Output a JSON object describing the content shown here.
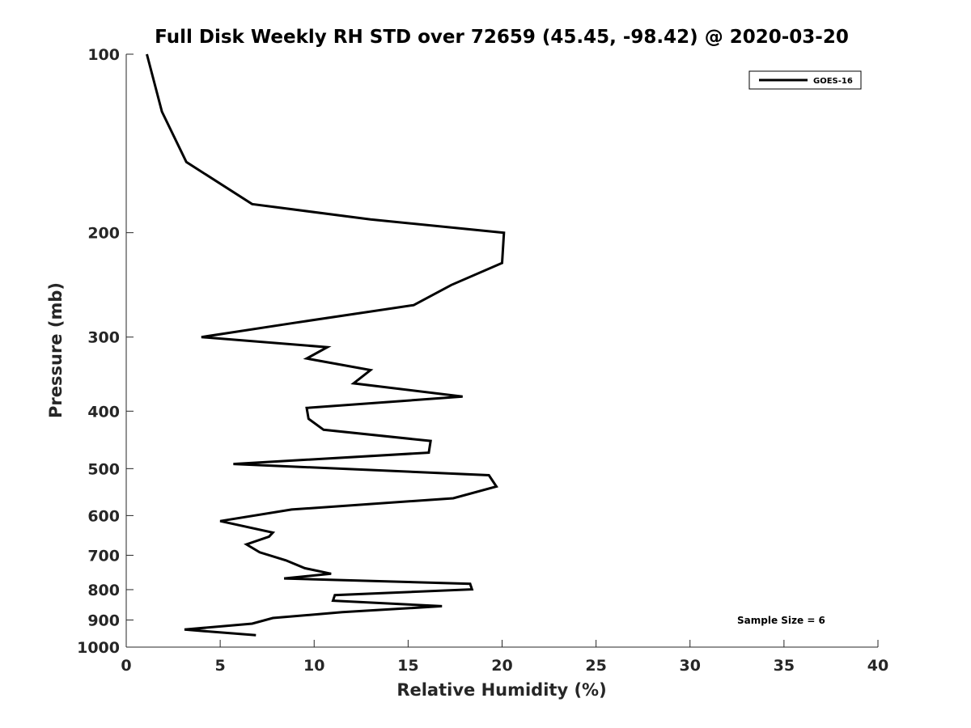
{
  "chart_data": {
    "type": "line",
    "title": "Full Disk Weekly RH STD over 72659 (45.45, -98.42) @ 2020-03-20",
    "xlabel": "Relative Humidity (%)",
    "ylabel": "Pressure (mb)",
    "xlim": [
      0,
      40
    ],
    "ylim": [
      100,
      1000
    ],
    "yscale": "log",
    "yreversed": true,
    "x_ticks": [
      0,
      5,
      10,
      15,
      20,
      25,
      30,
      35,
      40
    ],
    "x_tick_labels": [
      "0",
      "5",
      "10",
      "15",
      "20",
      "25",
      "30",
      "35",
      "40"
    ],
    "y_ticks": [
      100,
      200,
      300,
      400,
      500,
      600,
      700,
      800,
      900,
      1000
    ],
    "y_tick_labels": [
      "100",
      "200",
      "300",
      "400",
      "500",
      "600",
      "700",
      "800",
      "900",
      "1000"
    ],
    "grid": false,
    "legend": {
      "position": "top-right",
      "entries": [
        "GOES-16"
      ]
    },
    "annotation": {
      "text": "Sample Size = 6",
      "position": "bottom-right"
    },
    "series": [
      {
        "name": "GOES-16",
        "color": "#000000",
        "points": [
          [
            1.1,
            100
          ],
          [
            1.9,
            125
          ],
          [
            3.2,
            152
          ],
          [
            6.7,
            179
          ],
          [
            13.0,
            190
          ],
          [
            20.1,
            200
          ],
          [
            20.0,
            225
          ],
          [
            17.3,
            245
          ],
          [
            15.3,
            265
          ],
          [
            8.9,
            284
          ],
          [
            4.0,
            300
          ],
          [
            10.7,
            312
          ],
          [
            9.6,
            326
          ],
          [
            13.0,
            341
          ],
          [
            12.1,
            359
          ],
          [
            17.9,
            378
          ],
          [
            9.6,
            395
          ],
          [
            9.7,
            412
          ],
          [
            10.5,
            430
          ],
          [
            16.2,
            449
          ],
          [
            16.1,
            470
          ],
          [
            5.7,
            491
          ],
          [
            19.3,
            513
          ],
          [
            19.7,
            536
          ],
          [
            17.4,
            561
          ],
          [
            8.8,
            586
          ],
          [
            5.0,
            613
          ],
          [
            7.8,
            641
          ],
          [
            7.6,
            651
          ],
          [
            6.4,
            671
          ],
          [
            7.1,
            692
          ],
          [
            8.5,
            714
          ],
          [
            9.5,
            736
          ],
          [
            10.9,
            752
          ],
          [
            8.4,
            766
          ],
          [
            18.3,
            782
          ],
          [
            18.4,
            799
          ],
          [
            11.1,
            817
          ],
          [
            11.0,
            835
          ],
          [
            16.8,
            853
          ],
          [
            11.5,
            873
          ],
          [
            7.8,
            893
          ],
          [
            6.7,
            913
          ],
          [
            3.1,
            934
          ],
          [
            6.9,
            955
          ]
        ]
      }
    ]
  }
}
